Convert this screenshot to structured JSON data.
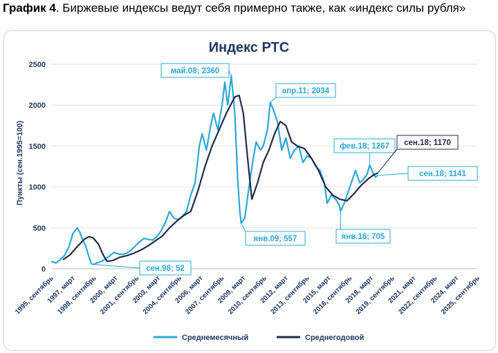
{
  "caption": {
    "label": "График 4",
    "text": ". Биржевые индексы ведут себя примерно также, как «индекс силы рубля»"
  },
  "chart_data": {
    "type": "line",
    "title": "Индекс РТС",
    "ylabel": "Пункты (сен.1995=100)",
    "xlabel": "",
    "ylim": [
      0,
      2500
    ],
    "yticks": [
      0,
      500,
      1000,
      1500,
      2000,
      2500
    ],
    "xlim": [
      1995.67,
      2025.67
    ],
    "x_tick_labels": [
      {
        "x": 1995.67,
        "label": "1995, сентябрь"
      },
      {
        "x": 1997.17,
        "label": "1997, март"
      },
      {
        "x": 1998.67,
        "label": "1998, сентябрь"
      },
      {
        "x": 2000.17,
        "label": "2000, март"
      },
      {
        "x": 2001.67,
        "label": "2001, сентябрь"
      },
      {
        "x": 2003.17,
        "label": "2003, март"
      },
      {
        "x": 2004.67,
        "label": "2004, сентябрь"
      },
      {
        "x": 2006.17,
        "label": "2006, март"
      },
      {
        "x": 2007.67,
        "label": "2007, сентябрь"
      },
      {
        "x": 2009.17,
        "label": "2009, март"
      },
      {
        "x": 2010.67,
        "label": "2010, сентябрь"
      },
      {
        "x": 2012.17,
        "label": "2012, март"
      },
      {
        "x": 2013.67,
        "label": "2013, сентябрь"
      },
      {
        "x": 2015.17,
        "label": "2015, март"
      },
      {
        "x": 2016.67,
        "label": "2016, сентябрь"
      },
      {
        "x": 2018.17,
        "label": "2018, март"
      },
      {
        "x": 2019.67,
        "label": "2019, сентябрь"
      },
      {
        "x": 2021.17,
        "label": "2021, март"
      },
      {
        "x": 2022.67,
        "label": "2022, сентябрь"
      },
      {
        "x": 2024.17,
        "label": "2024, март"
      },
      {
        "x": 2025.67,
        "label": "2025, сентябрь"
      }
    ],
    "grid": true,
    "legend_position": "bottom",
    "series": [
      {
        "name": "Среднемесячный",
        "color": "#2ba7d8",
        "x": [
          1995.67,
          1996.0,
          1996.3,
          1996.6,
          1996.9,
          1997.2,
          1997.5,
          1997.7,
          1997.9,
          1998.1,
          1998.3,
          1998.5,
          1998.67,
          1998.9,
          1999.2,
          1999.5,
          1999.8,
          2000.1,
          2000.4,
          2000.7,
          2001.0,
          2001.3,
          2001.6,
          2001.9,
          2002.2,
          2002.5,
          2002.8,
          2003.1,
          2003.4,
          2003.7,
          2004.0,
          2004.3,
          2004.6,
          2004.9,
          2005.2,
          2005.5,
          2005.8,
          2006.1,
          2006.3,
          2006.6,
          2006.9,
          2007.1,
          2007.4,
          2007.7,
          2007.9,
          2008.1,
          2008.35,
          2008.6,
          2008.8,
          2008.95,
          2009.05,
          2009.3,
          2009.6,
          2009.9,
          2010.1,
          2010.4,
          2010.6,
          2010.9,
          2011.1,
          2011.3,
          2011.6,
          2011.9,
          2012.2,
          2012.5,
          2012.8,
          2013.1,
          2013.4,
          2013.7,
          2014.0,
          2014.3,
          2014.6,
          2014.9,
          2015.1,
          2015.4,
          2015.7,
          2015.95,
          2016.05,
          2016.3,
          2016.6,
          2016.9,
          2017.1,
          2017.4,
          2017.7,
          2017.9,
          2018.1,
          2018.3,
          2018.5,
          2018.67
        ],
        "y": [
          90,
          70,
          110,
          160,
          260,
          430,
          500,
          440,
          350,
          280,
          160,
          60,
          52,
          70,
          90,
          120,
          160,
          200,
          180,
          175,
          190,
          230,
          280,
          330,
          370,
          360,
          350,
          390,
          460,
          560,
          700,
          620,
          600,
          640,
          700,
          900,
          1050,
          1500,
          1650,
          1450,
          1750,
          1900,
          1700,
          2000,
          2280,
          2000,
          2360,
          1900,
          1100,
          700,
          557,
          620,
          1000,
          1350,
          1550,
          1450,
          1500,
          1700,
          2034,
          1950,
          1800,
          1450,
          1600,
          1350,
          1450,
          1500,
          1300,
          1380,
          1350,
          1250,
          1200,
          1050,
          800,
          900,
          850,
          780,
          705,
          800,
          950,
          1100,
          1200,
          1050,
          1100,
          1150,
          1267,
          1180,
          1120,
          1141
        ]
      },
      {
        "name": "Среднегодовой",
        "color": "#1f2a4a",
        "x": [
          1996.5,
          1997.0,
          1997.5,
          1998.0,
          1998.3,
          1998.6,
          1999.0,
          1999.3,
          1999.6,
          2000.0,
          2000.5,
          2001.0,
          2001.5,
          2002.0,
          2002.5,
          2003.0,
          2003.5,
          2004.0,
          2004.5,
          2005.0,
          2005.5,
          2006.0,
          2006.5,
          2007.0,
          2007.5,
          2008.0,
          2008.3,
          2008.6,
          2008.9,
          2009.2,
          2009.5,
          2009.8,
          2010.2,
          2010.6,
          2011.0,
          2011.4,
          2011.8,
          2012.2,
          2012.6,
          2013.0,
          2013.5,
          2014.0,
          2014.5,
          2015.0,
          2015.5,
          2016.0,
          2016.5,
          2017.0,
          2017.5,
          2018.0,
          2018.4,
          2018.67
        ],
        "y": [
          110,
          170,
          270,
          360,
          390,
          380,
          300,
          180,
          90,
          100,
          140,
          160,
          190,
          230,
          280,
          340,
          400,
          500,
          580,
          650,
          700,
          950,
          1250,
          1500,
          1700,
          1900,
          2000,
          2100,
          2120,
          1900,
          1350,
          850,
          1050,
          1300,
          1450,
          1650,
          1800,
          1750,
          1550,
          1500,
          1470,
          1350,
          1200,
          1000,
          900,
          850,
          830,
          920,
          1020,
          1100,
          1150,
          1170
        ]
      }
    ],
    "annotations": [
      {
        "text": "май.08; 2360",
        "x": 2008.35,
        "y": 2360,
        "series": 0
      },
      {
        "text": "сен.98; 52",
        "x": 1998.67,
        "y": 52,
        "series": 0
      },
      {
        "text": "янв.09; 557",
        "x": 2009.05,
        "y": 557,
        "series": 0
      },
      {
        "text": "апр.11; 2034",
        "x": 2011.1,
        "y": 2034,
        "series": 0
      },
      {
        "text": "фев.18; 1267",
        "x": 2018.1,
        "y": 1267,
        "series": 0
      },
      {
        "text": "янв.16; 705",
        "x": 2016.05,
        "y": 705,
        "series": 0
      },
      {
        "text": "сен.18; 1170",
        "x": 2018.67,
        "y": 1170,
        "series": 1
      },
      {
        "text": "сен.18; 1141",
        "x": 2018.67,
        "y": 1141,
        "series": 0
      }
    ]
  }
}
